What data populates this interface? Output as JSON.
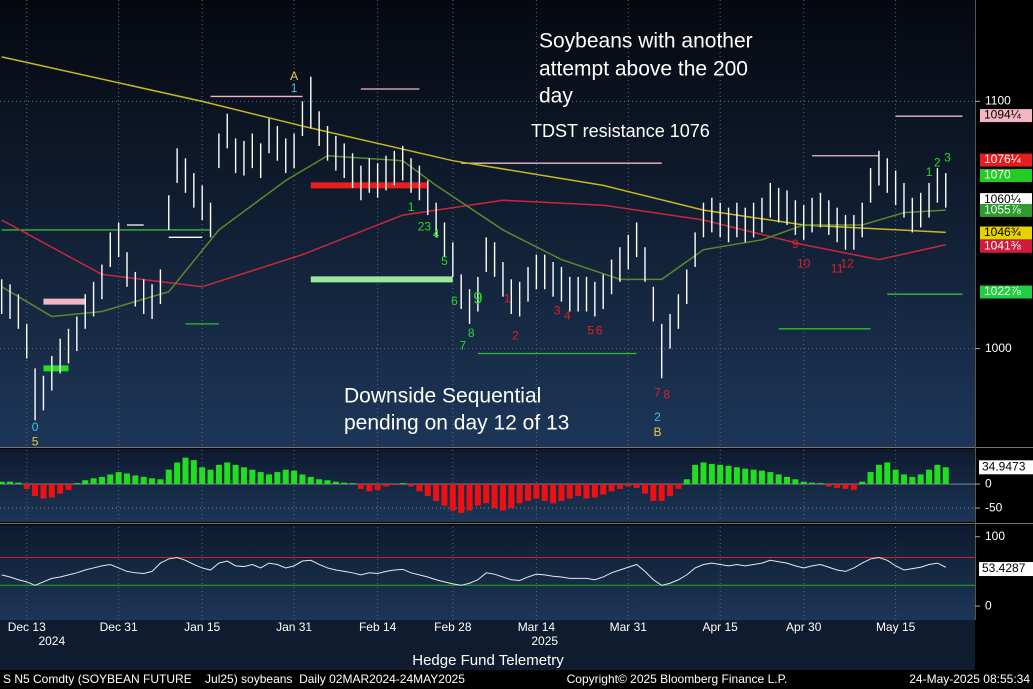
{
  "chart_data": [
    {
      "type": "ohlc",
      "xlim": [
        -3.2,
        113.5
      ],
      "ylim": [
        961,
        1141
      ],
      "yticks": [
        1000,
        1100
      ],
      "grid": true,
      "bar_color": "#ffffff",
      "xticks": [
        {
          "value": 0,
          "label": "Dec 13"
        },
        {
          "value": 11,
          "label": "Dec 31"
        },
        {
          "value": 21,
          "label": "Jan 15"
        },
        {
          "value": 32,
          "label": "Jan 31"
        },
        {
          "value": 42,
          "label": "Feb 14"
        },
        {
          "value": 51,
          "label": "Feb 28"
        },
        {
          "value": 61,
          "label": "Mar 14"
        },
        {
          "value": 72,
          "label": "Mar 31"
        },
        {
          "value": 83,
          "label": "Apr 15"
        },
        {
          "value": 93,
          "label": "Apr 30"
        },
        {
          "value": 104,
          "label": "May 15"
        }
      ],
      "year_labels": [
        {
          "value": 3,
          "label": "2024"
        },
        {
          "value": 62,
          "label": "2025"
        }
      ],
      "x": [
        -3,
        -2,
        -1,
        0,
        1,
        2,
        3,
        4,
        5,
        6,
        7,
        8,
        9,
        10,
        11,
        12,
        13,
        14,
        15,
        16,
        17,
        18,
        19,
        20,
        21,
        22,
        23,
        24,
        25,
        26,
        27,
        28,
        29,
        30,
        31,
        32,
        33,
        34,
        35,
        36,
        37,
        38,
        39,
        40,
        41,
        42,
        43,
        44,
        45,
        46,
        47,
        48,
        49,
        50,
        51,
        52,
        53,
        54,
        55,
        56,
        57,
        58,
        59,
        60,
        61,
        62,
        63,
        64,
        65,
        66,
        67,
        68,
        69,
        70,
        71,
        72,
        73,
        74,
        75,
        76,
        77,
        78,
        79,
        80,
        81,
        82,
        83,
        84,
        85,
        86,
        87,
        88,
        89,
        90,
        91,
        92,
        93,
        94,
        95,
        96,
        97,
        98,
        99,
        100,
        101,
        102,
        103,
        104,
        105,
        106,
        107,
        108,
        109,
        110
      ],
      "high": [
        1028,
        1026,
        1022,
        1010,
        992,
        989,
        997,
        1004,
        1008,
        1013,
        1022,
        1027,
        1034,
        1047,
        1051,
        1039,
        1031,
        1028,
        1026,
        1032,
        1062,
        1081,
        1077,
        1071,
        1066,
        1059,
        1087,
        1095,
        1085,
        1084,
        1087,
        1083,
        1093,
        1090,
        1085,
        1087,
        1100,
        1110,
        1096,
        1090,
        1086,
        1083,
        1079,
        1074,
        1077,
        1075,
        1078,
        1080,
        1082,
        1077,
        1074,
        1068,
        1059,
        1051,
        1043,
        1030,
        1024,
        1029,
        1045,
        1043,
        1035,
        1028,
        1027,
        1033,
        1038,
        1038,
        1035,
        1033,
        1029,
        1029,
        1029,
        1027,
        1030,
        1036,
        1041,
        1046,
        1051,
        1041,
        1025,
        1010,
        1014,
        1022,
        1032,
        1047,
        1059,
        1061,
        1059,
        1057,
        1059,
        1057,
        1059,
        1061,
        1067,
        1065,
        1064,
        1060,
        1058,
        1061,
        1063,
        1060,
        1057,
        1054,
        1054,
        1059,
        1073,
        1080,
        1077,
        1072,
        1067,
        1061,
        1063,
        1067,
        1073,
        1071
      ],
      "low": [
        1014,
        1012,
        1008,
        996,
        971,
        975,
        983,
        990,
        994,
        999,
        1008,
        1013,
        1020,
        1033,
        1037,
        1025,
        1017,
        1014,
        1012,
        1018,
        1048,
        1067,
        1063,
        1057,
        1052,
        1045,
        1073,
        1081,
        1071,
        1070,
        1073,
        1069,
        1079,
        1076,
        1071,
        1073,
        1086,
        1089,
        1082,
        1076,
        1072,
        1069,
        1065,
        1060,
        1063,
        1061,
        1064,
        1066,
        1068,
        1063,
        1060,
        1054,
        1045,
        1037,
        1029,
        1016,
        1010,
        1015,
        1031,
        1029,
        1021,
        1014,
        1013,
        1019,
        1024,
        1024,
        1021,
        1019,
        1015,
        1015,
        1015,
        1013,
        1016,
        1022,
        1027,
        1032,
        1037,
        1027,
        1011,
        988,
        1000,
        1008,
        1018,
        1033,
        1045,
        1047,
        1045,
        1043,
        1045,
        1043,
        1045,
        1047,
        1053,
        1051,
        1050,
        1046,
        1044,
        1047,
        1049,
        1046,
        1043,
        1040,
        1040,
        1045,
        1059,
        1066,
        1063,
        1058,
        1053,
        1047,
        1049,
        1053,
        1059,
        1057
      ],
      "moving_averages": [
        {
          "color": "#c8b820",
          "x": [
            -3,
            21,
            33,
            51,
            69,
            81,
            93,
            110
          ],
          "values": [
            1118,
            1100,
            1090,
            1076,
            1066,
            1056,
            1050,
            1047
          ]
        },
        {
          "color": "#c8283c",
          "x": [
            -3,
            9,
            21,
            33,
            45,
            57,
            69,
            81,
            93,
            102,
            110
          ],
          "values": [
            1052,
            1030,
            1025,
            1038,
            1054,
            1060,
            1058,
            1052,
            1042,
            1036,
            1042
          ]
        },
        {
          "color": "#5a8a2a",
          "x": [
            -3,
            3,
            9,
            17,
            23,
            31,
            36,
            45,
            49,
            57,
            64,
            71,
            76,
            81,
            88,
            93,
            100,
            105,
            110
          ],
          "values": [
            1025,
            1013,
            1015,
            1023,
            1048,
            1068,
            1078,
            1076,
            1066,
            1048,
            1036,
            1028,
            1028,
            1040,
            1044,
            1050,
            1050,
            1055,
            1056
          ]
        }
      ],
      "levels": [
        {
          "color": "#f0b8c8",
          "x": [
            22,
            33
          ],
          "value": 1102
        },
        {
          "color": "#f0b8c8",
          "x": [
            40,
            47
          ],
          "value": 1105
        },
        {
          "color": "#f0b8c8",
          "x": [
            52,
            76
          ],
          "value": 1075
        },
        {
          "color": "#f0b8c8",
          "x": [
            94,
            102
          ],
          "value": 1078
        },
        {
          "color": "#f0b8c8",
          "x": [
            104,
            112
          ],
          "value": 1094
        },
        {
          "color": "#ee1c1c",
          "x": [
            34,
            48
          ],
          "value": 1066,
          "thick": true
        },
        {
          "color": "#9ee89e",
          "x": [
            34,
            51
          ],
          "value": 1028,
          "thick": true
        },
        {
          "color": "#f4b6c2",
          "x": [
            2,
            7
          ],
          "value": 1019,
          "thick": true
        },
        {
          "color": "#22dd22",
          "x": [
            2,
            5
          ],
          "value": 992,
          "thick": true
        },
        {
          "color": "#33bb33",
          "x": [
            -3,
            22
          ],
          "value": 1048
        },
        {
          "color": "#33bb33",
          "x": [
            19,
            23
          ],
          "value": 1010
        },
        {
          "color": "#33bb33",
          "x": [
            54,
            73
          ],
          "value": 998
        },
        {
          "color": "#33bb33",
          "x": [
            90,
            101
          ],
          "value": 1008
        },
        {
          "color": "#33bb33",
          "x": [
            103,
            112
          ],
          "value": 1022
        },
        {
          "color": "#ffffff",
          "x": [
            12,
            14
          ],
          "value": 1050
        },
        {
          "color": "#ffffff",
          "x": [
            17,
            21
          ],
          "value": 1045
        }
      ],
      "counts": [
        {
          "label": "A",
          "x": 32,
          "y": 1110,
          "color": "#e6d040"
        },
        {
          "label": "1",
          "x": 32,
          "y": 1105,
          "color": "#36c8e8"
        },
        {
          "label": "0",
          "x": 1,
          "y": 968,
          "color": "#36c8e8"
        },
        {
          "label": "5",
          "x": 1,
          "y": 962,
          "color": "#e6d040"
        },
        {
          "label": "1",
          "x": 46,
          "y": 1057,
          "color": "#22dd22"
        },
        {
          "label": "23",
          "x": 47.6,
          "y": 1049,
          "color": "#22dd22"
        },
        {
          "label": "4",
          "x": 49,
          "y": 1046,
          "color": "#22dd22"
        },
        {
          "label": "5",
          "x": 50,
          "y": 1035,
          "color": "#22dd22"
        },
        {
          "label": "6",
          "x": 51.2,
          "y": 1019,
          "color": "#22dd22"
        },
        {
          "label": "9",
          "x": 54,
          "y": 1020,
          "color": "#22dd22"
        },
        {
          "label": "7",
          "x": 52.2,
          "y": 1001,
          "color": "#22dd22"
        },
        {
          "label": "8",
          "x": 53.2,
          "y": 1006,
          "color": "#22dd22"
        },
        {
          "label": "1",
          "x": 57.5,
          "y": 1020,
          "color": "#e02020"
        },
        {
          "label": "2",
          "x": 58.5,
          "y": 1005,
          "color": "#e02020"
        },
        {
          "label": "3",
          "x": 63.5,
          "y": 1015,
          "color": "#e02020"
        },
        {
          "label": "4",
          "x": 64.7,
          "y": 1013,
          "color": "#e02020"
        },
        {
          "label": "5",
          "x": 67.5,
          "y": 1007,
          "color": "#e02020"
        },
        {
          "label": "6",
          "x": 68.5,
          "y": 1007,
          "color": "#e02020"
        },
        {
          "label": "7",
          "x": 75.5,
          "y": 982,
          "color": "#e02020"
        },
        {
          "label": "8",
          "x": 76.6,
          "y": 981,
          "color": "#e02020"
        },
        {
          "label": "2",
          "x": 75.5,
          "y": 972,
          "color": "#36c8e8"
        },
        {
          "label": "B",
          "x": 75.5,
          "y": 966,
          "color": "#e6d040"
        },
        {
          "label": "9",
          "x": 92,
          "y": 1042,
          "color": "#e02020"
        },
        {
          "label": "10",
          "x": 93,
          "y": 1034,
          "color": "#e02020"
        },
        {
          "label": "11",
          "x": 97,
          "y": 1032,
          "color": "#e02020"
        },
        {
          "label": "12",
          "x": 98.2,
          "y": 1034,
          "color": "#e02020"
        },
        {
          "label": "1",
          "x": 108,
          "y": 1071,
          "color": "#22dd22"
        },
        {
          "label": "2",
          "x": 109,
          "y": 1075,
          "color": "#22dd22"
        },
        {
          "label": "3",
          "x": 110.2,
          "y": 1077,
          "color": "#22dd22"
        }
      ],
      "price_labels": {
        "values": [
          1094.25,
          1076.25,
          1070,
          1060.25,
          1055.875,
          1046.75,
          1041.375,
          1022.875
        ],
        "value_labels": [
          "1094¼",
          "1076¼",
          "1070",
          "1060¼",
          "1055⅞",
          "1046¾",
          "1041⅜",
          "1022⅞"
        ],
        "colors": [
          "#f4b6c2",
          "#e41e1e",
          "#22cc22",
          "#ffffff",
          "#2a9d2a",
          "#e6d200",
          "#d01c3c",
          "#1fcf3f"
        ]
      },
      "title_lines": [
        "Soybeans with another",
        "attempt above the 200",
        "day"
      ],
      "tdst_note": "TDST resistance 1076",
      "sequential_lines": [
        "Downside Sequential",
        "pending on day 12 of 13"
      ]
    },
    {
      "type": "histogram",
      "ylim": [
        -79,
        71
      ],
      "yticks": [
        0,
        -50
      ],
      "last_value": 34.9473,
      "positive_color": "#22dd22",
      "negative_color": "#ee1111",
      "values": [
        5,
        5,
        3,
        -10,
        -25,
        -30,
        -28,
        -20,
        -12,
        2,
        8,
        12,
        15,
        20,
        25,
        22,
        18,
        15,
        12,
        10,
        30,
        45,
        55,
        50,
        35,
        30,
        40,
        45,
        40,
        35,
        30,
        25,
        20,
        25,
        30,
        28,
        20,
        15,
        10,
        8,
        5,
        3,
        2,
        -10,
        -15,
        -12,
        -5,
        -2,
        2,
        -5,
        -15,
        -25,
        -35,
        -45,
        -55,
        -60,
        -55,
        -45,
        -40,
        -50,
        -55,
        -50,
        -40,
        -35,
        -30,
        -35,
        -40,
        -35,
        -30,
        -25,
        -30,
        -28,
        -22,
        -15,
        -10,
        -5,
        -8,
        -20,
        -35,
        -35,
        -25,
        -10,
        10,
        40,
        45,
        42,
        40,
        38,
        35,
        32,
        30,
        28,
        25,
        20,
        15,
        10,
        5,
        3,
        2,
        -5,
        -8,
        -10,
        -12,
        5,
        25,
        40,
        45,
        30,
        20,
        15,
        20,
        30,
        40,
        35
      ]
    },
    {
      "type": "line",
      "ylim": [
        -20,
        114
      ],
      "yticks": [
        0,
        100
      ],
      "last_value": 53.4287,
      "color": "#e8e8e8",
      "levels": [
        {
          "value": 70,
          "color": "#d02020"
        },
        {
          "value": 30,
          "color": "#20b020"
        }
      ],
      "values": [
        45,
        42,
        38,
        35,
        30,
        35,
        40,
        42,
        45,
        48,
        52,
        55,
        58,
        60,
        55,
        50,
        48,
        47,
        50,
        62,
        68,
        70,
        66,
        60,
        55,
        52,
        62,
        65,
        58,
        57,
        60,
        55,
        62,
        60,
        55,
        58,
        65,
        66,
        60,
        55,
        52,
        50,
        48,
        45,
        48,
        47,
        50,
        52,
        53,
        48,
        45,
        42,
        38,
        35,
        32,
        30,
        33,
        38,
        48,
        46,
        42,
        38,
        37,
        42,
        46,
        45,
        43,
        42,
        40,
        40,
        40,
        38,
        42,
        48,
        52,
        56,
        60,
        50,
        38,
        30,
        33,
        38,
        45,
        55,
        60,
        62,
        60,
        58,
        60,
        58,
        60,
        62,
        66,
        64,
        62,
        58,
        55,
        58,
        60,
        56,
        52,
        50,
        55,
        62,
        68,
        70,
        66,
        58,
        52,
        54,
        56,
        60,
        62,
        56
      ]
    }
  ],
  "footer": {
    "left": "S N5 Comdty (SOYBEAN FUTURE    Jul25) soybeans  Daily 02MAR2024-24MAY2025",
    "center": "Copyright© 2025 Bloomberg Finance L.P.",
    "right": "24-May-2025 08:55:34",
    "credit": "Hedge Fund Telemetry"
  }
}
